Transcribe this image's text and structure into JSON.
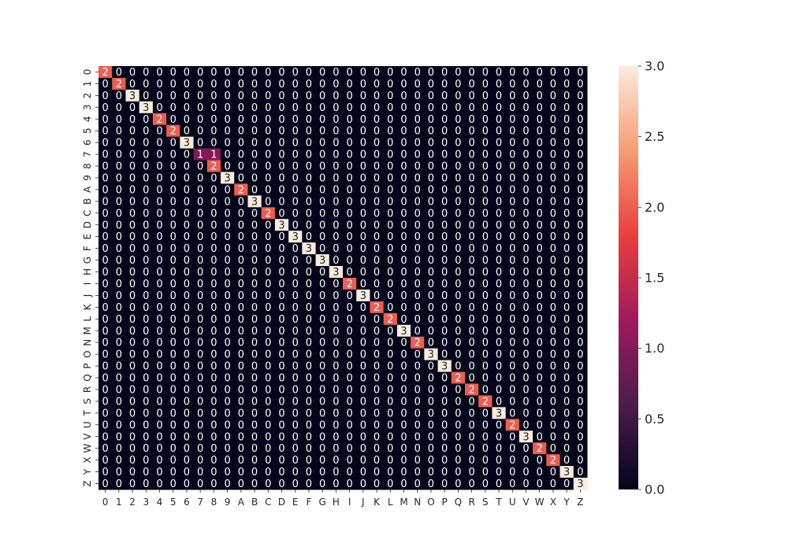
{
  "chart_data": {
    "type": "heatmap",
    "title": "",
    "xlabel": "",
    "ylabel": "",
    "x_categories": [
      "0",
      "1",
      "2",
      "3",
      "4",
      "5",
      "6",
      "7",
      "8",
      "9",
      "A",
      "B",
      "C",
      "D",
      "E",
      "F",
      "G",
      "H",
      "I",
      "J",
      "K",
      "L",
      "M",
      "N",
      "O",
      "P",
      "Q",
      "R",
      "S",
      "T",
      "U",
      "V",
      "W",
      "X",
      "Y",
      "Z"
    ],
    "y_categories": [
      "0",
      "1",
      "2",
      "3",
      "4",
      "5",
      "6",
      "7",
      "8",
      "9",
      "A",
      "B",
      "C",
      "D",
      "E",
      "F",
      "G",
      "H",
      "I",
      "J",
      "K",
      "L",
      "M",
      "N",
      "O",
      "P",
      "Q",
      "R",
      "S",
      "T",
      "U",
      "V",
      "W",
      "X",
      "Y",
      "Z"
    ],
    "diagonal": [
      2,
      2,
      3,
      3,
      2,
      2,
      3,
      1,
      2,
      3,
      2,
      3,
      2,
      3,
      3,
      3,
      3,
      3,
      2,
      3,
      2,
      2,
      3,
      2,
      3,
      3,
      2,
      2,
      2,
      3,
      2,
      3,
      2,
      2,
      3,
      3
    ],
    "off_diagonal_nonzero": [
      {
        "row": "7",
        "col": "8",
        "value": 1
      }
    ],
    "zero_value": 0,
    "colorbar": {
      "vmin": 0.0,
      "vmax": 3.0,
      "ticks": [
        "0.0",
        "0.5",
        "1.0",
        "1.5",
        "2.0",
        "2.5",
        "3.0"
      ],
      "colormap": "rocket",
      "stops": [
        "#03051a",
        "#4c1d4b",
        "#a11a5b",
        "#e83f3f",
        "#f69c73",
        "#faebdd"
      ]
    },
    "annotations": "cell values printed in each cell"
  }
}
